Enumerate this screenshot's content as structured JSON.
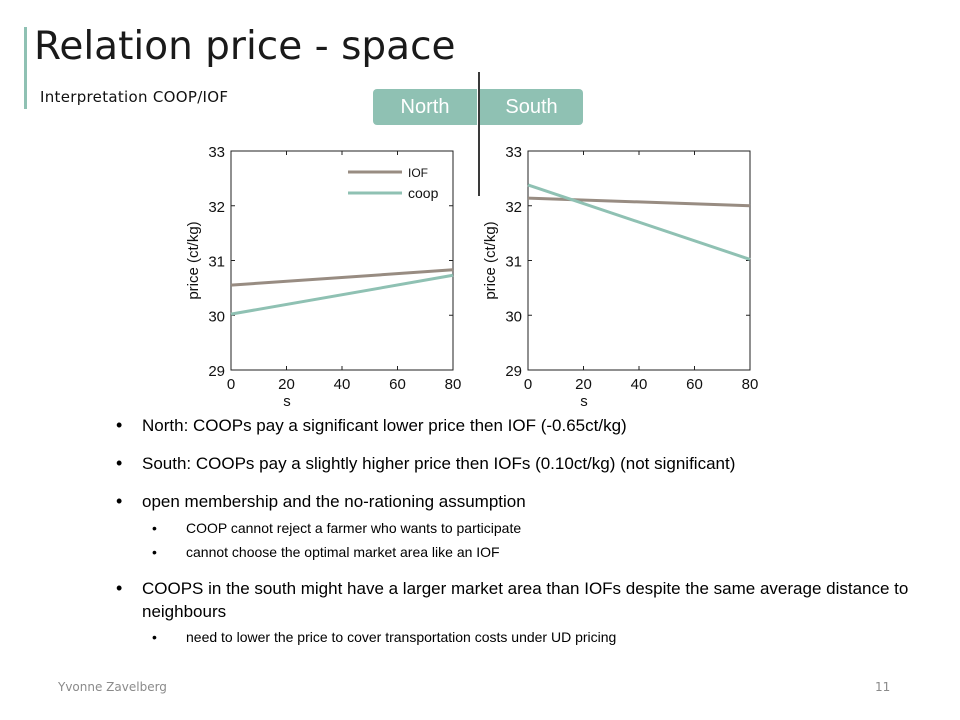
{
  "slide": {
    "title": "Relation price - space",
    "subtitle": "Interpretation COOP/IOF",
    "region_tags": {
      "north": "North",
      "south": "South"
    },
    "accent_color": "#8fc1b3"
  },
  "chart_data": [
    {
      "type": "line",
      "region": "North",
      "xlabel": "s",
      "ylabel": "price (ct/kg)",
      "xlim": [
        0,
        80
      ],
      "ylim": [
        29,
        33
      ],
      "xticks": [
        "0",
        "20",
        "40",
        "60",
        "80"
      ],
      "yticks": [
        "29",
        "30",
        "31",
        "32",
        "33"
      ],
      "legend": {
        "placement": "top-left",
        "entries": [
          "IOF",
          "coop"
        ]
      },
      "series": [
        {
          "name": "IOF",
          "color": "#988c82",
          "x": [
            0,
            80
          ],
          "y": [
            30.55,
            30.83
          ]
        },
        {
          "name": "coop",
          "color": "#8fc1b3",
          "x": [
            0,
            80
          ],
          "y": [
            30.02,
            30.73
          ]
        }
      ]
    },
    {
      "type": "line",
      "region": "South",
      "xlabel": "s",
      "ylabel": "price (ct/kg)",
      "xlim": [
        0,
        80
      ],
      "ylim": [
        29,
        33
      ],
      "xticks": [
        "0",
        "20",
        "40",
        "60",
        "80"
      ],
      "yticks": [
        "29",
        "30",
        "31",
        "32",
        "33"
      ],
      "series": [
        {
          "name": "IOF",
          "color": "#988c82",
          "x": [
            0,
            80
          ],
          "y": [
            32.14,
            32.0
          ]
        },
        {
          "name": "coop",
          "color": "#8fc1b3",
          "x": [
            0,
            80
          ],
          "y": [
            32.38,
            31.02
          ]
        }
      ]
    }
  ],
  "bullets": {
    "b1": "North: COOPs pay a significant lower price then IOF (-0.65ct/kg)",
    "b2": "South: COOPs pay a slightly higher price then IOFs (0.10ct/kg) (not significant)",
    "b3": "open membership and the no-rationing assumption",
    "b3_sub1": "COOP cannot reject a farmer who wants to participate",
    "b3_sub2": "cannot choose the optimal market area like an IOF",
    "b4": "COOPS in the south might have a larger market area than IOFs despite the same average distance to neighbours",
    "b4_sub1": "need to lower the price to cover transportation costs under UD pricing"
  },
  "footer": {
    "author": "Yvonne Zavelberg",
    "page_number": "11"
  }
}
